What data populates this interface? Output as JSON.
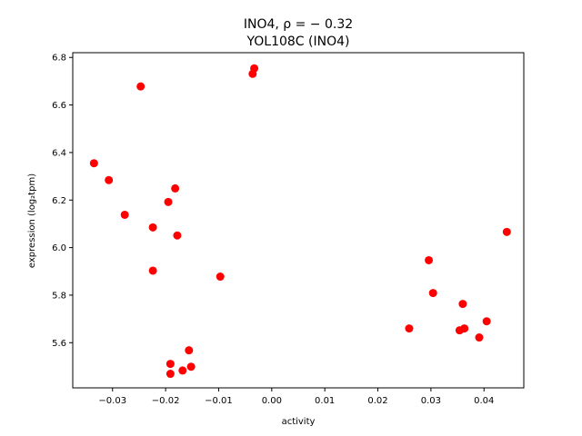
{
  "chart_data": {
    "type": "scatter",
    "title": "INO4, ρ = − 0.32",
    "subtitle": "YOL108C (INO4)",
    "xlabel": "activity",
    "ylabel": "expression (log₂tpm)",
    "xlim": [
      -0.0375,
      0.0475
    ],
    "ylim": [
      5.41,
      6.82
    ],
    "x_ticks": [
      -0.03,
      -0.02,
      -0.01,
      0.0,
      0.01,
      0.02,
      0.03,
      0.04
    ],
    "x_tick_labels": [
      "−0.03",
      "−0.02",
      "−0.01",
      "0.00",
      "0.01",
      "0.02",
      "0.03",
      "0.04"
    ],
    "y_ticks": [
      5.6,
      5.8,
      6.0,
      6.2,
      6.4,
      6.6,
      6.8
    ],
    "y_tick_labels": [
      "5.6",
      "5.8",
      "6.0",
      "6.2",
      "6.4",
      "6.6",
      "6.8"
    ],
    "grid": false,
    "marker_color": "#ff0000",
    "points": [
      {
        "x": -0.0335,
        "y": 6.355
      },
      {
        "x": -0.0307,
        "y": 6.284
      },
      {
        "x": -0.0247,
        "y": 6.678
      },
      {
        "x": -0.0277,
        "y": 6.138
      },
      {
        "x": -0.0224,
        "y": 6.085
      },
      {
        "x": -0.0224,
        "y": 5.903
      },
      {
        "x": -0.0195,
        "y": 6.192
      },
      {
        "x": -0.0182,
        "y": 6.249
      },
      {
        "x": -0.0178,
        "y": 6.051
      },
      {
        "x": -0.0191,
        "y": 5.511
      },
      {
        "x": -0.0191,
        "y": 5.469
      },
      {
        "x": -0.0168,
        "y": 5.483
      },
      {
        "x": -0.0156,
        "y": 5.568
      },
      {
        "x": -0.0152,
        "y": 5.499
      },
      {
        "x": -0.0097,
        "y": 5.878
      },
      {
        "x": -0.0036,
        "y": 6.731
      },
      {
        "x": -0.0033,
        "y": 6.754
      },
      {
        "x": 0.0259,
        "y": 5.66
      },
      {
        "x": 0.0296,
        "y": 5.947
      },
      {
        "x": 0.0304,
        "y": 5.809
      },
      {
        "x": 0.0354,
        "y": 5.652
      },
      {
        "x": 0.036,
        "y": 5.763
      },
      {
        "x": 0.0363,
        "y": 5.66
      },
      {
        "x": 0.0391,
        "y": 5.622
      },
      {
        "x": 0.0405,
        "y": 5.69
      },
      {
        "x": 0.0443,
        "y": 6.066
      }
    ]
  }
}
